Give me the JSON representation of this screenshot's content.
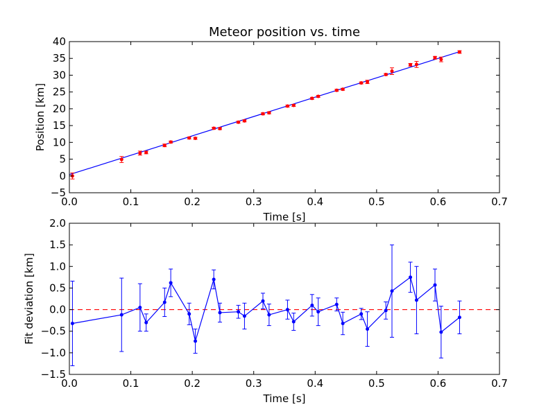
{
  "chart_data": [
    {
      "type": "scatter",
      "title": "Meteor position vs. time",
      "xlabel": "Time [s]",
      "ylabel": "Position [km]",
      "xlim": [
        0.0,
        0.7
      ],
      "ylim": [
        -5,
        40
      ],
      "xticks": [
        "0.0",
        "0.1",
        "0.2",
        "0.3",
        "0.4",
        "0.5",
        "0.6",
        "0.7"
      ],
      "yticks": [
        "−5",
        "0",
        "5",
        "10",
        "15",
        "20",
        "25",
        "30",
        "35",
        "40"
      ],
      "grid": false,
      "legend": "none",
      "colors": {
        "points": "#ff0000",
        "fit": "#0000ff"
      },
      "series": [
        {
          "kind": "points-with-errorbars",
          "x": [
            0.005,
            0.085,
            0.115,
            0.125,
            0.155,
            0.165,
            0.195,
            0.205,
            0.235,
            0.245,
            0.275,
            0.285,
            0.315,
            0.325,
            0.355,
            0.365,
            0.395,
            0.405,
            0.435,
            0.445,
            0.475,
            0.485,
            0.515,
            0.525,
            0.555,
            0.565,
            0.595,
            0.605,
            0.635
          ],
          "y": [
            0.0,
            4.9,
            6.8,
            7.0,
            9.1,
            10.1,
            11.3,
            11.2,
            14.2,
            14.1,
            16.0,
            16.4,
            18.5,
            18.8,
            20.8,
            21.0,
            23.1,
            23.7,
            25.5,
            25.8,
            27.7,
            28.0,
            30.2,
            31.2,
            33.1,
            33.2,
            35.2,
            34.7,
            36.9
          ],
          "err": [
            0.9,
            0.9,
            0.6,
            0.4,
            0.4,
            0.3,
            0.3,
            0.3,
            0.3,
            0.3,
            0.3,
            0.3,
            0.3,
            0.3,
            0.3,
            0.3,
            0.3,
            0.3,
            0.3,
            0.3,
            0.3,
            0.5,
            0.3,
            1.0,
            0.4,
            0.9,
            0.4,
            0.7,
            0.4
          ]
        },
        {
          "kind": "fit-line",
          "x": [
            0.0,
            0.635
          ],
          "y": [
            0.4,
            37.0
          ]
        }
      ]
    },
    {
      "type": "line",
      "title": "",
      "xlabel": "Time [s]",
      "ylabel": "Fit deviation [km]",
      "xlim": [
        0.0,
        0.7
      ],
      "ylim": [
        -1.5,
        2.0
      ],
      "xticks": [
        "0.0",
        "0.1",
        "0.2",
        "0.3",
        "0.4",
        "0.5",
        "0.6",
        "0.7"
      ],
      "yticks": [
        "−1.5",
        "−1.0",
        "−0.5",
        "0.0",
        "0.5",
        "1.0",
        "1.5",
        "2.0"
      ],
      "grid": false,
      "legend": "none",
      "colors": {
        "series": "#0000ff",
        "zero_line": "#ff0000"
      },
      "zero_line": {
        "y": 0.0,
        "style": "dashed"
      },
      "series": [
        {
          "kind": "line-with-errorbars",
          "x": [
            0.005,
            0.085,
            0.115,
            0.125,
            0.155,
            0.165,
            0.195,
            0.205,
            0.235,
            0.245,
            0.275,
            0.285,
            0.315,
            0.325,
            0.355,
            0.365,
            0.395,
            0.405,
            0.435,
            0.445,
            0.475,
            0.485,
            0.515,
            0.525,
            0.555,
            0.565,
            0.595,
            0.605,
            0.635
          ],
          "y": [
            -0.32,
            -0.12,
            0.05,
            -0.3,
            0.17,
            0.62,
            -0.1,
            -0.73,
            0.7,
            -0.07,
            -0.05,
            -0.15,
            0.2,
            -0.12,
            0.0,
            -0.28,
            0.1,
            -0.05,
            0.12,
            -0.32,
            -0.1,
            -0.45,
            -0.02,
            0.43,
            0.75,
            0.22,
            0.57,
            -0.52,
            -0.18
          ],
          "err": [
            0.98,
            0.85,
            0.55,
            0.2,
            0.33,
            0.32,
            0.25,
            0.28,
            0.22,
            0.22,
            0.15,
            0.3,
            0.18,
            0.25,
            0.22,
            0.2,
            0.25,
            0.32,
            0.15,
            0.26,
            0.13,
            0.4,
            0.2,
            1.07,
            0.35,
            0.78,
            0.37,
            0.6,
            0.38
          ]
        }
      ]
    }
  ]
}
